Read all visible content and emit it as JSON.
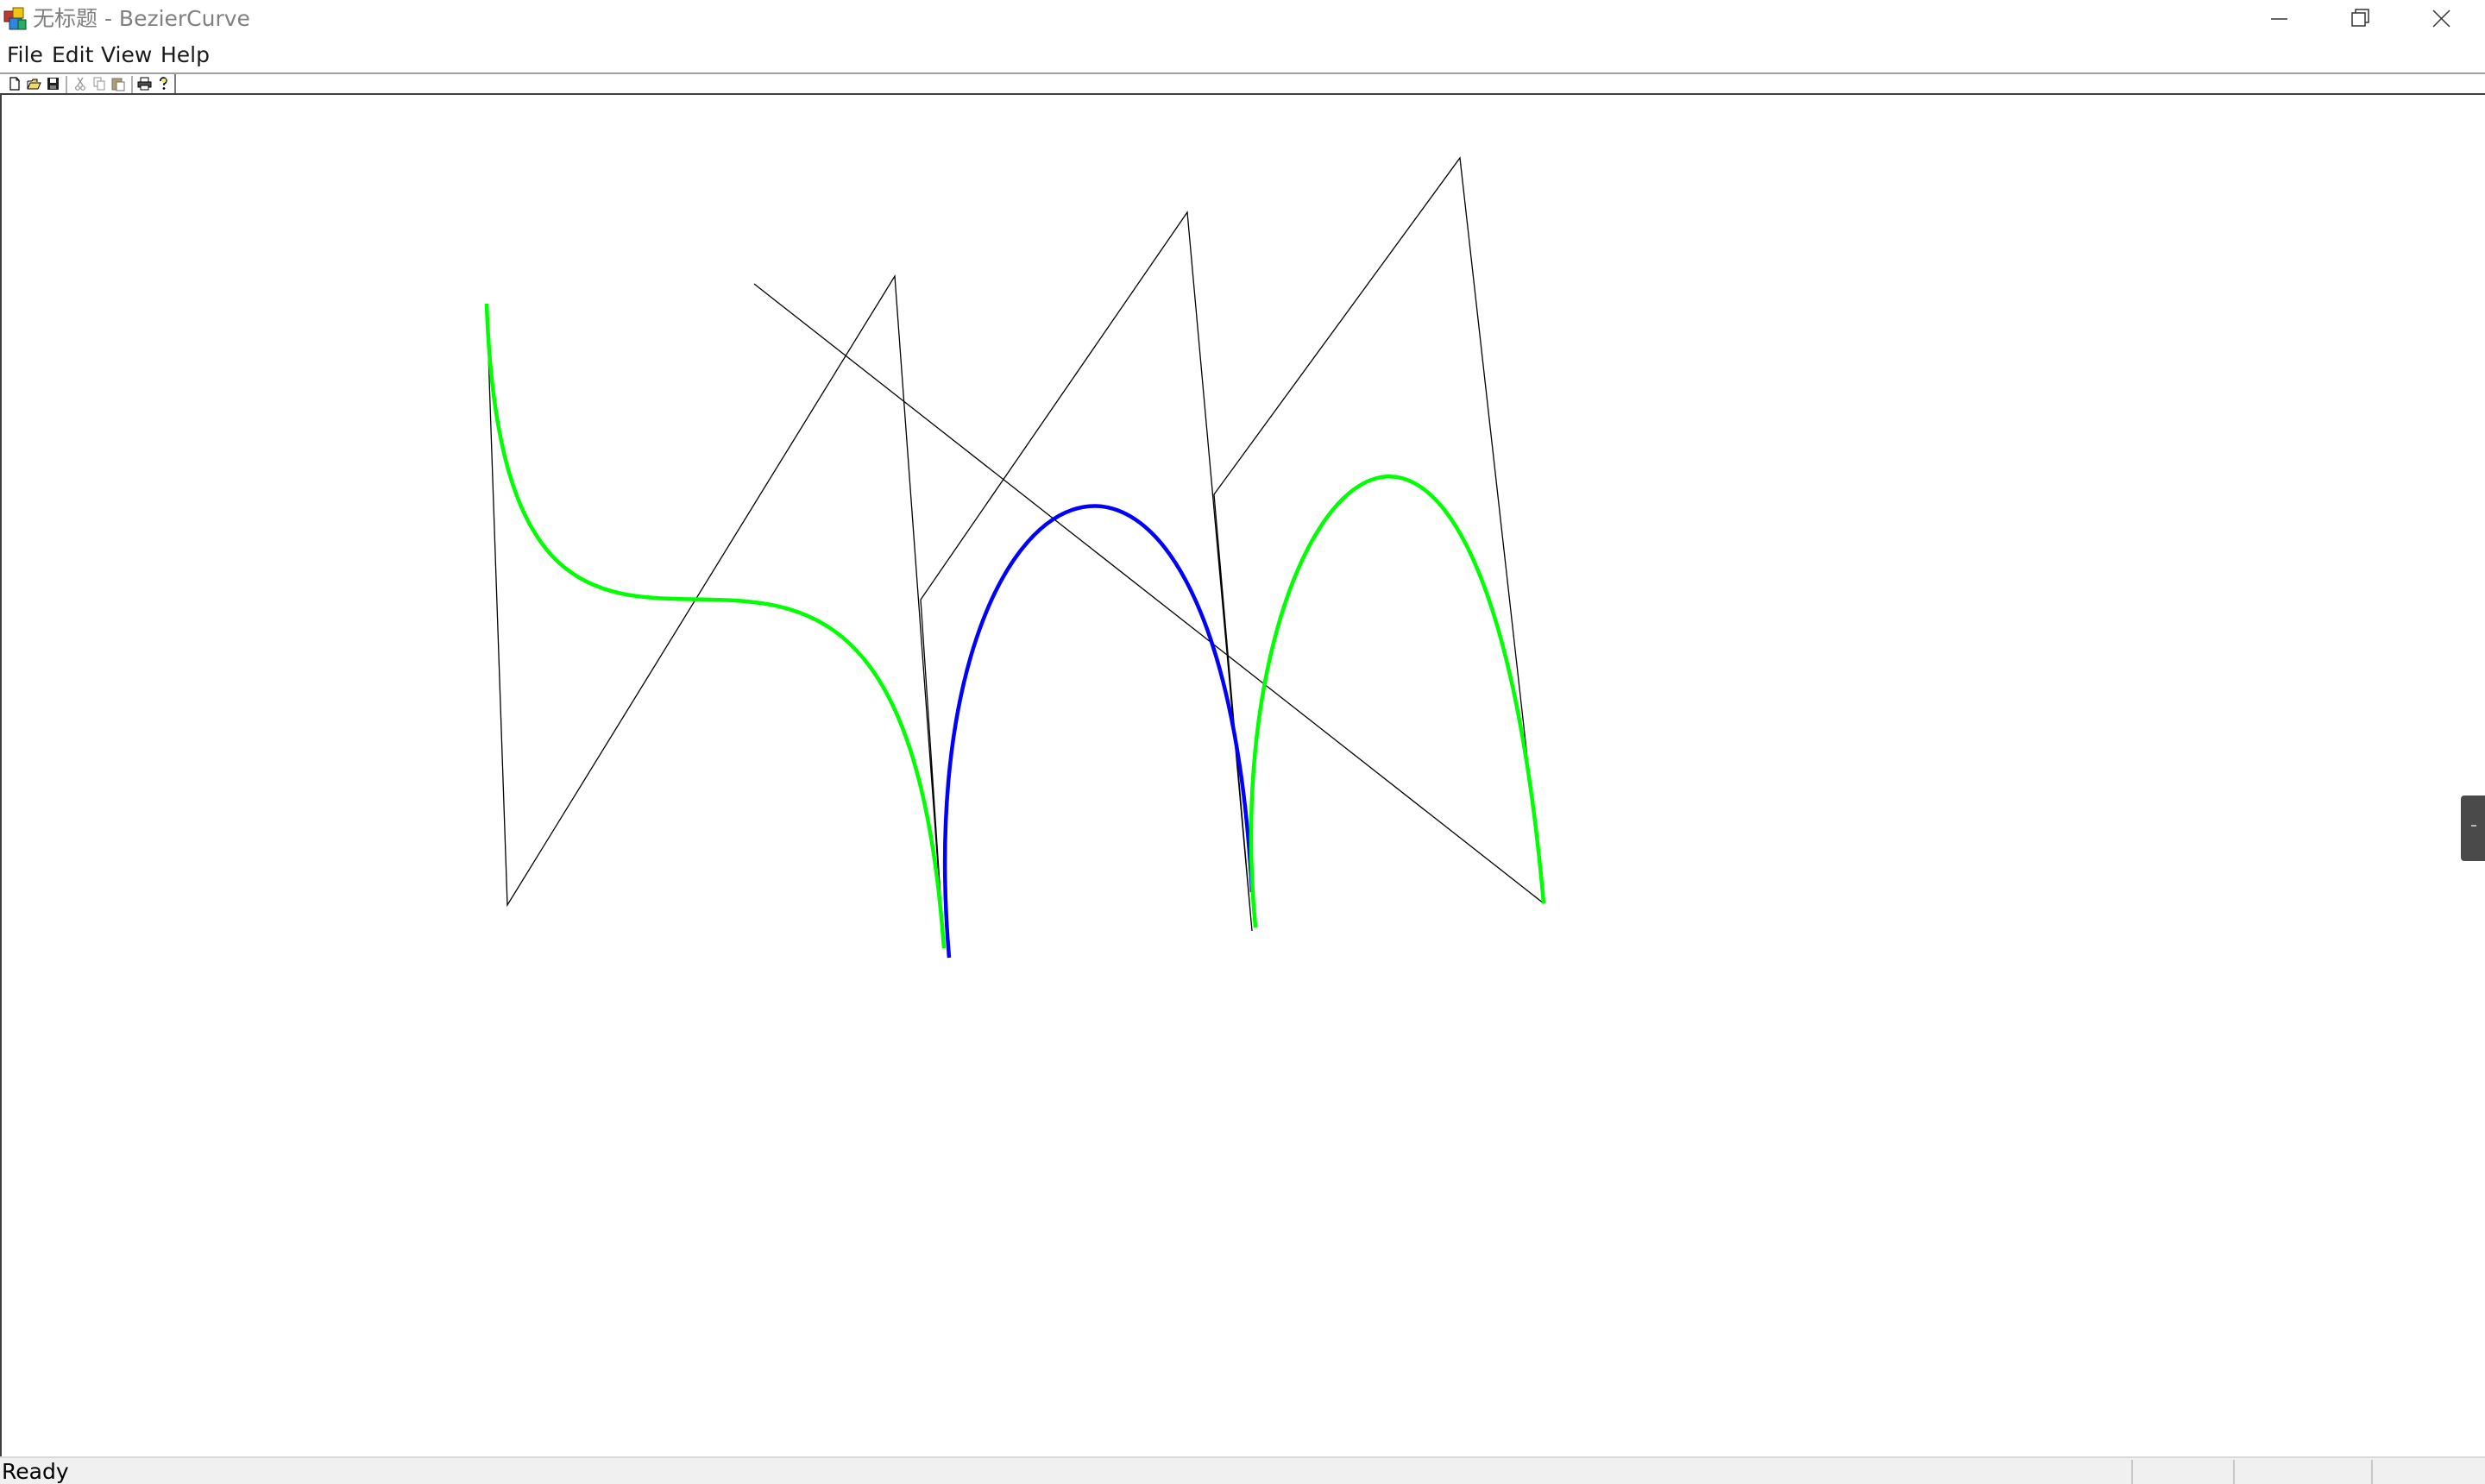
{
  "window": {
    "title": "无标题 - BezierCurve",
    "app_icon": "app-icon",
    "controls": [
      "minimize-icon",
      "restore-icon",
      "close-icon"
    ]
  },
  "menubar": {
    "items": [
      {
        "label": "File"
      },
      {
        "label": "Edit"
      },
      {
        "label": "View"
      },
      {
        "label": "Help"
      }
    ]
  },
  "toolbar": {
    "buttons": [
      {
        "icon": "new-file-icon"
      },
      {
        "icon": "open-folder-icon"
      },
      {
        "icon": "save-icon"
      },
      {
        "icon": "cut-icon"
      },
      {
        "icon": "copy-icon"
      },
      {
        "icon": "paste-icon"
      },
      {
        "icon": "print-icon"
      },
      {
        "icon": "about-icon"
      }
    ]
  },
  "canvas": {
    "colors": {
      "control_polygon": "#000000",
      "curve_primary": "#00ff00",
      "curve_secondary": "#0000ff"
    }
  },
  "status": {
    "text": "Ready"
  }
}
